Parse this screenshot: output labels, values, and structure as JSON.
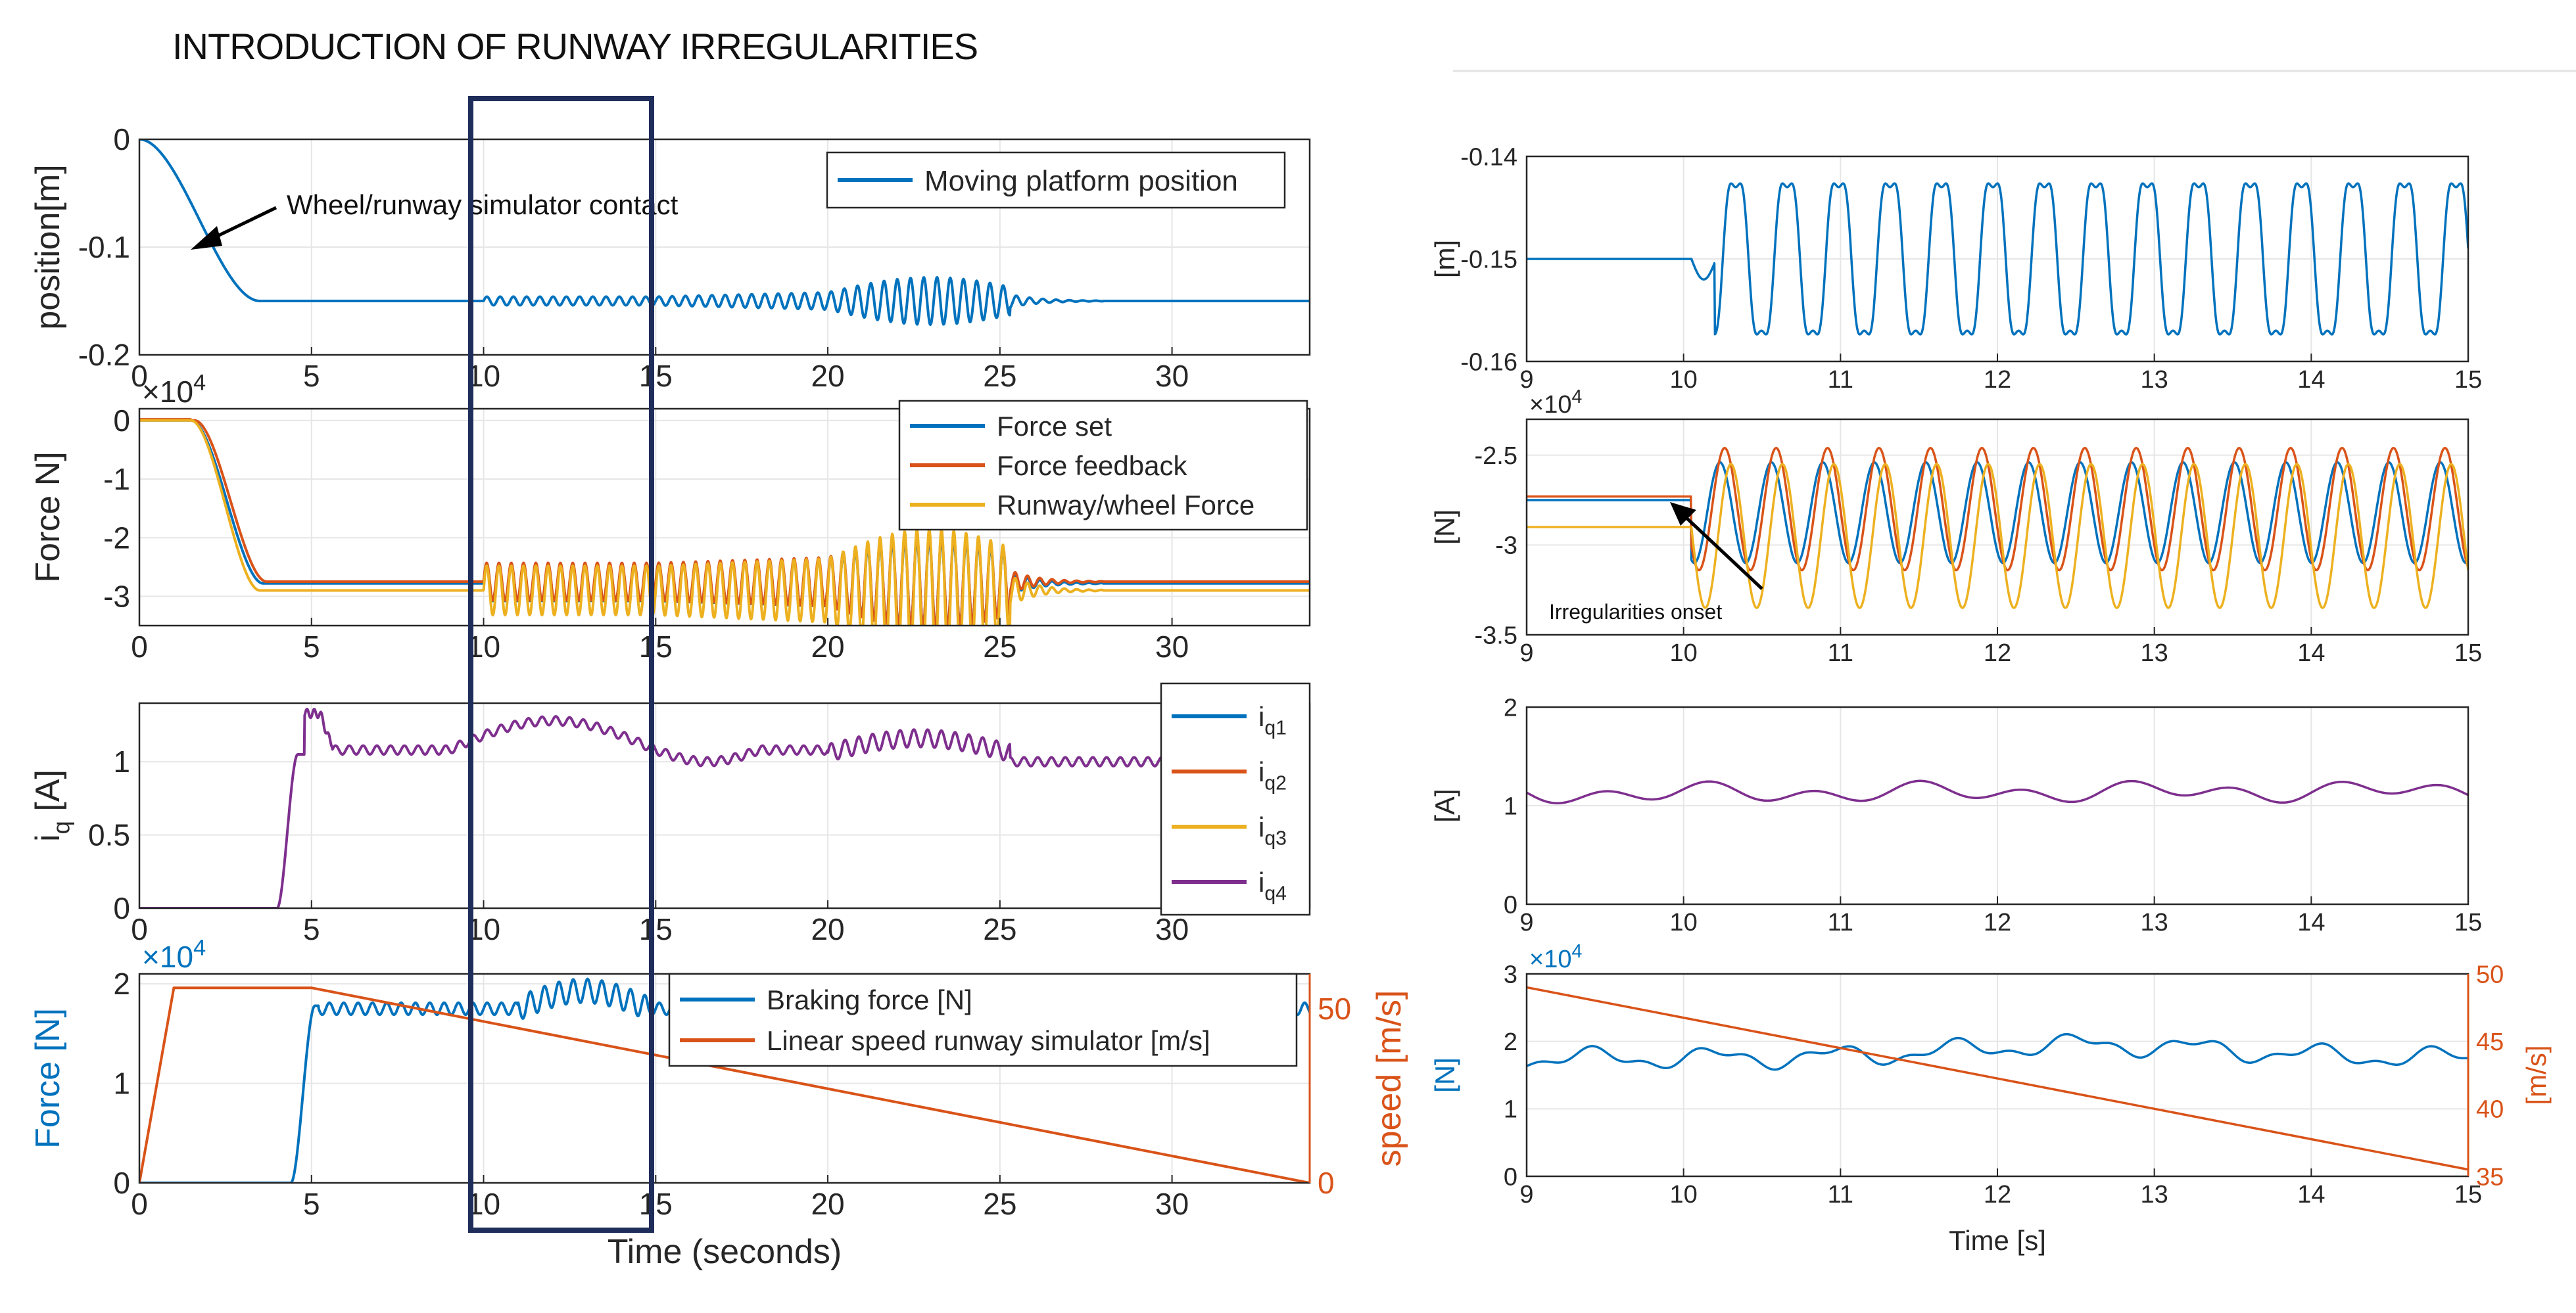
{
  "header": {
    "title": "INTRODUCTION OF RUNWAY IRREGULARITIES"
  },
  "colors": {
    "blue": "#0072BD",
    "orange": "#D95319",
    "yellow": "#EDB120",
    "purple": "#7E2F8E",
    "navy": "#1F2D5A",
    "grid": "#E6E6E6"
  },
  "chart_data": [
    {
      "id": "left-position",
      "type": "line",
      "ylabel": "position[m]",
      "xlabel": "",
      "xlim": [
        0,
        34
      ],
      "ylim": [
        -0.2,
        0
      ],
      "xticks": [
        "0",
        "5",
        "10",
        "15",
        "20",
        "25",
        "30"
      ],
      "yticks": [
        "-0.2",
        "-0.1",
        "0"
      ],
      "legend": [
        "Moving platform position"
      ],
      "annotation": "Wheel/runway simulator contact",
      "series": [
        {
          "name": "Moving platform position",
          "color": "#0072BD",
          "description": "drops from 0 to -0.15 by t=3.5 s, small oscillation 10-15 s, larger 20-25 s, settles -0.15"
        }
      ]
    },
    {
      "id": "left-force",
      "type": "line",
      "ylabel": "Force N]",
      "xlabel": "",
      "exponent": "×10^4",
      "xlim": [
        0,
        34
      ],
      "ylim": [
        -3.5,
        0.2
      ],
      "xticks": [
        "0",
        "5",
        "10",
        "15",
        "20",
        "25",
        "30"
      ],
      "yticks": [
        "0",
        "-1",
        "-2",
        "-3"
      ],
      "legend": [
        "Force set",
        "Force feedback",
        "Runway/wheel Force"
      ],
      "series": [
        {
          "name": "Force set",
          "color": "#0072BD",
          "steady": -2.78
        },
        {
          "name": "Force feedback",
          "color": "#D95319",
          "steady": -2.75
        },
        {
          "name": "Runway/wheel Force",
          "color": "#EDB120",
          "steady": -2.9
        }
      ]
    },
    {
      "id": "left-current",
      "type": "line",
      "ylabel": "i_q [A]",
      "xlabel": "",
      "xlim": [
        0,
        34
      ],
      "ylim": [
        0,
        1.4
      ],
      "xticks": [
        "0",
        "5",
        "10",
        "15",
        "20",
        "25",
        "30"
      ],
      "yticks": [
        "0",
        "0.5",
        "1"
      ],
      "legend": [
        "i",
        "i",
        "i",
        "i"
      ],
      "legend_sub": [
        "q1",
        "q2",
        "q3",
        "q4"
      ],
      "series": [
        {
          "name": "iq4",
          "color": "#7E2F8E",
          "steady": 1.05
        }
      ]
    },
    {
      "id": "left-braking",
      "type": "line",
      "ylabel": "Force  [N]",
      "ylabel_right": "speed [m/s]",
      "xlabel": "Time (seconds)",
      "exponent": "×10^4",
      "xlim": [
        0,
        34
      ],
      "ylim": [
        0,
        2.1
      ],
      "ylim_right": [
        0,
        60
      ],
      "xticks": [
        "0",
        "5",
        "10",
        "15",
        "20",
        "25",
        "30"
      ],
      "yticks": [
        "0",
        "1",
        "2"
      ],
      "yticks_right": [
        "0",
        "50"
      ],
      "legend": [
        "Braking force [N]",
        "Linear speed runway simulator [m/s]"
      ],
      "series": [
        {
          "name": "Braking force [N]",
          "color": "#0072BD",
          "steady": 1.75
        },
        {
          "name": "Linear speed runway simulator [m/s]",
          "color": "#D95319",
          "points": [
            [
              0,
              0
            ],
            [
              1,
              56
            ],
            [
              5,
              56
            ],
            [
              34,
              0
            ]
          ]
        }
      ]
    },
    {
      "id": "right-position",
      "type": "line",
      "ylabel": "[m]",
      "xlabel": "",
      "xlim": [
        9,
        15
      ],
      "ylim": [
        -0.16,
        -0.14
      ],
      "xticks": [
        "9",
        "10",
        "11",
        "12",
        "13",
        "14",
        "15"
      ],
      "yticks": [
        "-0.16",
        "-0.15",
        "-0.14"
      ],
      "series": [
        {
          "name": "position",
          "color": "#0072BD",
          "steady": -0.15
        }
      ]
    },
    {
      "id": "right-force",
      "type": "line",
      "ylabel": "[N]",
      "xlabel": "",
      "exponent": "×10^4",
      "xlim": [
        9,
        15
      ],
      "ylim": [
        -3.5,
        -2.3
      ],
      "xticks": [
        "9",
        "10",
        "11",
        "12",
        "13",
        "14",
        "15"
      ],
      "yticks": [
        "-3.5",
        "-3",
        "-2.5"
      ],
      "annotation": "Irregularities onset",
      "series": [
        {
          "name": "Force set",
          "color": "#0072BD",
          "steady": -2.75
        },
        {
          "name": "Force feedback",
          "color": "#D95319",
          "steady": -2.73
        },
        {
          "name": "Runway/wheel Force",
          "color": "#EDB120",
          "steady": -2.9
        }
      ]
    },
    {
      "id": "right-current",
      "type": "line",
      "ylabel": "[A]",
      "xlabel": "",
      "xlim": [
        9,
        15
      ],
      "ylim": [
        0,
        2
      ],
      "xticks": [
        "9",
        "10",
        "11",
        "12",
        "13",
        "14",
        "15"
      ],
      "yticks": [
        "0",
        "1",
        "2"
      ],
      "series": [
        {
          "name": "iq4",
          "color": "#7E2F8E",
          "steady": 1.1
        }
      ]
    },
    {
      "id": "right-braking",
      "type": "line",
      "ylabel": "[N]",
      "ylabel_right": "[m/s]",
      "xlabel": "Time [s]",
      "exponent": "×10^4",
      "xlim": [
        9,
        15
      ],
      "ylim": [
        0,
        3
      ],
      "ylim_right": [
        35,
        50
      ],
      "xticks": [
        "9",
        "10",
        "11",
        "12",
        "13",
        "14",
        "15"
      ],
      "yticks": [
        "0",
        "1",
        "2",
        "3"
      ],
      "yticks_right": [
        "35",
        "40",
        "45",
        "50"
      ],
      "series": [
        {
          "name": "Braking force",
          "color": "#0072BD",
          "steady": 1.8
        },
        {
          "name": "Linear speed",
          "color": "#D95319",
          "points": [
            [
              9,
              49
            ],
            [
              15,
              35.5
            ]
          ]
        }
      ]
    }
  ]
}
